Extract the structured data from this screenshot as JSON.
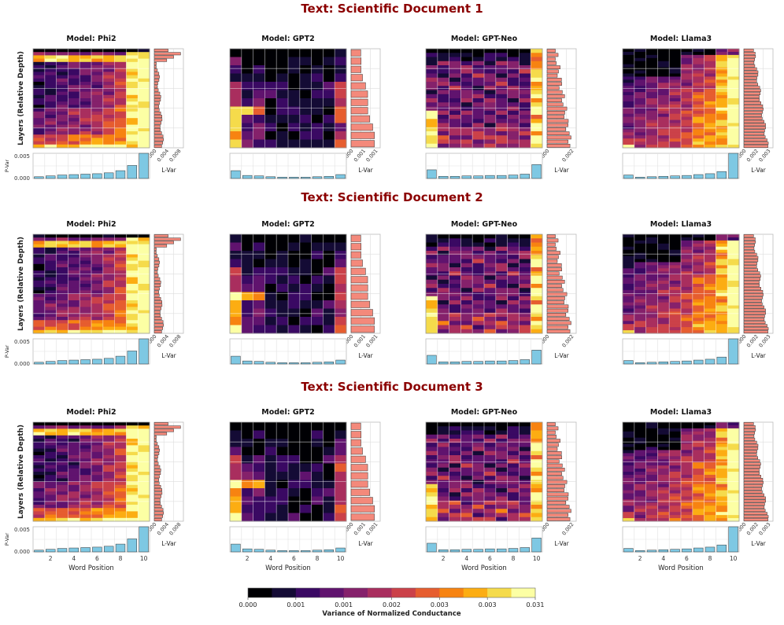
{
  "chart_data": {
    "type": "heatmap",
    "docs": [
      "Text: Scientific Document 1",
      "Text: Scientific Document 2",
      "Text: Scientific Document 3"
    ],
    "models": [
      {
        "title": "Model: Phi2",
        "key": "phi2",
        "rows": 30,
        "lvar_ticks": [
          "0.000",
          "0.004",
          "0.008"
        ],
        "lvar_max": 0.009,
        "pvar": [
          0.0004,
          0.0006,
          0.0008,
          0.0009,
          0.001,
          0.0011,
          0.0013,
          0.0018,
          0.003,
          0.0058
        ]
      },
      {
        "title": "Model: GPT2",
        "key": "gpt2",
        "rows": 12,
        "lvar_ticks": [
          "0.000",
          "0.001",
          "0.001"
        ],
        "lvar_max": 0.0016,
        "pvar": [
          0.0018,
          0.0007,
          0.0006,
          0.0004,
          0.0003,
          0.0003,
          0.0003,
          0.0004,
          0.0005,
          0.0009
        ]
      },
      {
        "title": "Model: GPT-Neo",
        "key": "gptneo",
        "rows": 24,
        "lvar_ticks": [
          "0.000",
          "0.002"
        ],
        "lvar_max": 0.004,
        "pvar": [
          0.002,
          0.0005,
          0.0005,
          0.0006,
          0.0006,
          0.0007,
          0.0007,
          0.0008,
          0.001,
          0.0032
        ]
      },
      {
        "title": "Model: Llama3",
        "key": "llama3",
        "rows": 32,
        "lvar_ticks": [
          "0.000",
          "0.002",
          "0.003"
        ],
        "lvar_max": 0.0036,
        "pvar": [
          0.0008,
          0.0003,
          0.0004,
          0.0005,
          0.0006,
          0.0007,
          0.0009,
          0.0011,
          0.0016,
          0.0058
        ]
      }
    ],
    "pvar_ylim": [
      0,
      0.0058
    ],
    "pvar_ticks": [
      "0.000",
      "0.005"
    ],
    "pvar_label": "P-Var",
    "lvar_label": "L-Var",
    "ylabel": "Layers (Relative Depth)",
    "xlabel": "Word Position",
    "x_positions": [
      1,
      2,
      3,
      4,
      5,
      6,
      7,
      8,
      9,
      10
    ],
    "x_ticks": [
      "2",
      "4",
      "6",
      "8",
      "10"
    ],
    "colorbar": {
      "label": "Variance of Normalized Conductance",
      "ticks": [
        "0.000",
        "0.001",
        "0.001",
        "0.002",
        "0.003",
        "0.003",
        "0.031"
      ],
      "colors": [
        "#000004",
        "#140b35",
        "#3a0963",
        "#60136e",
        "#85216b",
        "#a92e5e",
        "#cb4149",
        "#e65d2f",
        "#f78311",
        "#fcad12",
        "#f5db4b",
        "#fcffa4"
      ]
    }
  }
}
